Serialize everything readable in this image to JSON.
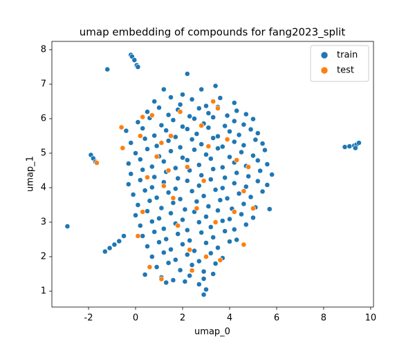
{
  "chart_data": {
    "type": "scatter",
    "title": "umap embedding of compounds for fang2023_split",
    "x_label": "umap_0",
    "y_label": "umap_1",
    "xlim": [
      -3.56,
      10.12
    ],
    "ylim": [
      0.54,
      8.24
    ],
    "xticks": [
      -2,
      0,
      2,
      4,
      6,
      8,
      10
    ],
    "yticks": [
      1,
      2,
      3,
      4,
      5,
      6,
      7,
      8
    ],
    "grid": false,
    "legend": "upper right",
    "series": [
      {
        "name": "train",
        "color": "#1f77b4",
        "x": [
          1.2,
          2.0,
          2.2,
          2.8,
          3.4,
          0.8,
          1.5,
          1.9,
          2.4,
          3.0,
          3.6,
          4.2,
          0.5,
          1.0,
          1.4,
          1.8,
          2.3,
          2.7,
          3.1,
          3.5,
          3.9,
          4.3,
          4.7,
          0.1,
          0.6,
          1.1,
          1.6,
          2.0,
          2.5,
          2.9,
          3.3,
          3.8,
          4.2,
          4.6,
          5.0,
          -0.4,
          0.3,
          0.8,
          1.3,
          1.7,
          2.2,
          2.6,
          3.1,
          3.5,
          4.0,
          4.4,
          4.9,
          5.2,
          -0.2,
          0.4,
          0.9,
          1.4,
          1.9,
          2.4,
          2.8,
          3.3,
          3.7,
          4.2,
          4.6,
          5.1,
          5.4,
          0.0,
          0.5,
          1.0,
          1.5,
          2.0,
          2.5,
          3.0,
          3.5,
          4.0,
          4.5,
          5.0,
          5.5,
          -0.3,
          0.2,
          0.7,
          1.2,
          1.7,
          2.2,
          2.7,
          3.2,
          3.7,
          4.2,
          4.7,
          5.2,
          5.6,
          -0.2,
          0.3,
          0.8,
          1.3,
          1.8,
          2.3,
          2.8,
          3.3,
          3.8,
          4.3,
          4.8,
          5.3,
          5.8,
          -0.3,
          0.2,
          0.7,
          1.2,
          1.7,
          2.2,
          2.7,
          3.2,
          3.7,
          4.2,
          4.7,
          5.2,
          5.6,
          -0.1,
          0.4,
          0.9,
          1.4,
          1.9,
          2.4,
          2.9,
          3.4,
          3.9,
          4.4,
          4.9,
          5.4,
          0.1,
          0.6,
          1.1,
          1.6,
          2.1,
          2.6,
          3.1,
          3.6,
          4.1,
          4.6,
          5.1,
          5.7,
          0.0,
          0.5,
          1.0,
          1.5,
          2.0,
          2.5,
          3.0,
          3.5,
          4.0,
          4.5,
          5.0,
          0.2,
          0.7,
          1.2,
          1.7,
          2.2,
          2.7,
          3.2,
          3.7,
          4.2,
          4.7,
          0.3,
          0.8,
          1.3,
          1.8,
          2.3,
          2.8,
          3.3,
          3.8,
          4.3,
          0.5,
          1.0,
          1.5,
          2.0,
          2.5,
          3.0,
          3.5,
          4.0,
          0.7,
          1.2,
          1.7,
          2.2,
          2.7,
          3.2,
          3.7,
          0.9,
          1.4,
          1.9,
          2.4,
          2.9,
          3.4,
          0.4,
          1.1,
          1.6,
          2.3,
          2.9,
          3.3,
          1.3,
          2.1,
          2.7,
          2.9,
          3.0,
          -2.9,
          -1.2,
          -0.2,
          -0.15,
          -0.05,
          0.05,
          0.1,
          -1.9,
          -1.8,
          -1.7,
          -1.3,
          -1.1,
          -0.9,
          -0.7,
          -0.5,
          8.9,
          9.1,
          9.3,
          9.4,
          9.5,
          9.35
        ],
        "values": [
          6.85,
          6.7,
          7.3,
          6.85,
          6.95,
          6.5,
          6.62,
          6.41,
          6.56,
          6.37,
          6.6,
          6.46,
          6.2,
          6.32,
          6.11,
          6.26,
          6.07,
          6.3,
          6.16,
          6.34,
          6.09,
          6.23,
          6.13,
          5.9,
          6.02,
          5.81,
          5.96,
          5.77,
          6.0,
          5.86,
          6.04,
          5.79,
          5.93,
          5.83,
          5.99,
          5.65,
          5.72,
          5.51,
          5.66,
          5.47,
          5.7,
          5.56,
          5.74,
          5.49,
          5.63,
          5.53,
          5.69,
          5.58,
          5.3,
          5.42,
          5.21,
          5.36,
          5.17,
          5.4,
          5.26,
          5.44,
          5.19,
          5.33,
          5.23,
          5.39,
          5.28,
          5.0,
          5.12,
          4.91,
          5.06,
          4.87,
          5.1,
          4.96,
          5.14,
          4.89,
          5.03,
          4.93,
          5.09,
          4.7,
          4.82,
          4.61,
          4.76,
          4.57,
          4.8,
          4.66,
          4.84,
          4.59,
          4.73,
          4.63,
          4.79,
          4.68,
          4.4,
          4.52,
          4.31,
          4.46,
          4.27,
          4.5,
          4.36,
          4.54,
          4.29,
          4.43,
          4.33,
          4.49,
          4.38,
          4.1,
          4.22,
          4.01,
          4.16,
          3.97,
          4.2,
          4.06,
          4.24,
          3.99,
          4.13,
          4.03,
          4.19,
          4.08,
          3.8,
          3.92,
          3.71,
          3.86,
          3.67,
          3.9,
          3.76,
          3.94,
          3.69,
          3.83,
          3.73,
          3.89,
          3.5,
          3.62,
          3.41,
          3.56,
          3.37,
          3.6,
          3.46,
          3.64,
          3.39,
          3.53,
          3.43,
          3.38,
          3.2,
          3.32,
          3.11,
          3.26,
          3.07,
          3.3,
          3.16,
          3.34,
          3.09,
          3.23,
          3.13,
          2.9,
          3.02,
          2.81,
          2.96,
          2.77,
          3.0,
          2.86,
          3.04,
          2.79,
          2.93,
          2.6,
          2.72,
          2.51,
          2.66,
          2.47,
          2.7,
          2.56,
          2.74,
          2.49,
          2.3,
          2.42,
          2.21,
          2.36,
          2.17,
          2.4,
          2.26,
          2.44,
          2.0,
          2.12,
          1.91,
          2.06,
          1.87,
          2.1,
          1.96,
          1.7,
          1.82,
          1.61,
          1.76,
          1.57,
          1.8,
          1.48,
          1.4,
          1.32,
          1.45,
          1.36,
          1.5,
          1.25,
          1.28,
          1.2,
          0.9,
          1.05,
          2.88,
          7.43,
          7.85,
          7.8,
          7.7,
          7.55,
          7.5,
          4.95,
          4.85,
          4.75,
          2.15,
          2.25,
          2.35,
          2.45,
          2.6,
          5.18,
          5.2,
          5.22,
          5.25,
          5.3,
          5.15
        ]
      },
      {
        "name": "test",
        "color": "#ff7f0e",
        "x": [
          -0.6,
          -0.55,
          0.3,
          0.7,
          1.1,
          0.9,
          1.4,
          0.5,
          1.2,
          1.6,
          0.3,
          0.1,
          2.2,
          2.9,
          3.1,
          3.5,
          3.9,
          4.3,
          4.6,
          4.2,
          3.4,
          2.6,
          1.8,
          2.3,
          3.0,
          3.6,
          2.4,
          1.1,
          0.6,
          4.6,
          5.0,
          4.8,
          1.9,
          2.8,
          3.3,
          -1.65,
          1.5,
          0.2
        ],
        "values": [
          5.75,
          5.15,
          6.05,
          6.1,
          5.3,
          4.9,
          4.5,
          4.3,
          4.05,
          3.7,
          3.3,
          2.6,
          4.6,
          4.2,
          5.2,
          6.3,
          5.4,
          4.8,
          3.9,
          3.3,
          3.0,
          3.4,
          2.9,
          2.2,
          2.0,
          1.9,
          1.6,
          1.35,
          1.7,
          2.35,
          3.4,
          4.6,
          6.2,
          5.8,
          6.5,
          4.72,
          5.5,
          5.5
        ]
      }
    ]
  }
}
